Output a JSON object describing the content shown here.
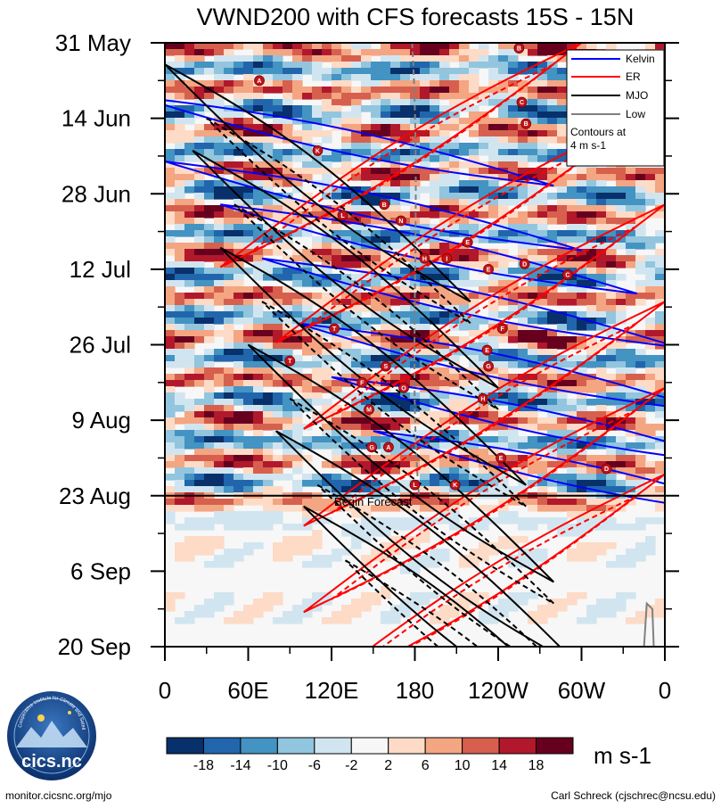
{
  "chart_data": {
    "type": "heatmap",
    "title": "VWND200 with CFS forecasts  15S - 15N",
    "xlabel": "",
    "ylabel": "",
    "x_ticks": [
      "0",
      "60E",
      "120E",
      "180",
      "120W",
      "60W",
      "0"
    ],
    "x_range": [
      0,
      360
    ],
    "y_ticks": [
      "31 May",
      "14 Jun",
      "28 Jun",
      "12 Jul",
      "26 Jul",
      "9 Aug",
      "23 Aug",
      "6 Sep",
      "20 Sep"
    ],
    "y_range_days": [
      0,
      112
    ],
    "forecast_start_day": 84,
    "forecast_label": "Begin Forecast",
    "colorbar": {
      "labels": [
        "-18",
        "-14",
        "-10",
        "-6",
        "-2",
        "2",
        "6",
        "10",
        "14",
        "18"
      ],
      "colors": [
        "#08306b",
        "#2166ac",
        "#4393c3",
        "#92c5de",
        "#d1e5f0",
        "#f7f7f7",
        "#fddbc7",
        "#f4a582",
        "#d6604d",
        "#b2182b",
        "#67001f"
      ],
      "units": "m s-1"
    },
    "legend": {
      "items": [
        {
          "name": "Kelvin",
          "color": "#0000ff"
        },
        {
          "name": "ER",
          "color": "#ff0000"
        },
        {
          "name": "MJO",
          "color": "#000000"
        },
        {
          "name": "Low",
          "color": "#808080"
        }
      ],
      "note_line1": "Contours at",
      "note_line2": "4 m s-1"
    },
    "storms": [
      {
        "id": "B",
        "lon": 255,
        "day": 1
      },
      {
        "id": "A",
        "lon": 68,
        "day": 7
      },
      {
        "id": "C",
        "lon": 257,
        "day": 11
      },
      {
        "id": "B",
        "lon": 260,
        "day": 15
      },
      {
        "id": "K",
        "lon": 110,
        "day": 20
      },
      {
        "id": "B",
        "lon": 158,
        "day": 30
      },
      {
        "id": "L",
        "lon": 128,
        "day": 32
      },
      {
        "id": "N",
        "lon": 170,
        "day": 33
      },
      {
        "id": "E",
        "lon": 218,
        "day": 37
      },
      {
        "id": "H",
        "lon": 187,
        "day": 40
      },
      {
        "id": "I",
        "lon": 203,
        "day": 40
      },
      {
        "id": "D",
        "lon": 259,
        "day": 41
      },
      {
        "id": "E",
        "lon": 233,
        "day": 42
      },
      {
        "id": "C",
        "lon": 290,
        "day": 43
      },
      {
        "id": "T",
        "lon": 122,
        "day": 53
      },
      {
        "id": "F",
        "lon": 243,
        "day": 53
      },
      {
        "id": "E",
        "lon": 232,
        "day": 57
      },
      {
        "id": "T",
        "lon": 90,
        "day": 59
      },
      {
        "id": "G",
        "lon": 233,
        "day": 60
      },
      {
        "id": "S",
        "lon": 159,
        "day": 60
      },
      {
        "id": "F",
        "lon": 142,
        "day": 63
      },
      {
        "id": "O",
        "lon": 172,
        "day": 64
      },
      {
        "id": "H",
        "lon": 229,
        "day": 66
      },
      {
        "id": "M",
        "lon": 147,
        "day": 68
      },
      {
        "id": "G",
        "lon": 149,
        "day": 75
      },
      {
        "id": "A",
        "lon": 161,
        "day": 75
      },
      {
        "id": "E",
        "lon": 242,
        "day": 77
      },
      {
        "id": "D",
        "lon": 318,
        "day": 79
      },
      {
        "id": "L",
        "lon": 180,
        "day": 82
      },
      {
        "id": "K",
        "lon": 209,
        "day": 82
      }
    ]
  },
  "logo": {
    "text": "cics.nc",
    "ring_text": "Cooperative Institute for Climate and Satellites"
  },
  "footer": {
    "left": "monitor.cicsnc.org/mjo",
    "right": "Carl Schreck (cjschrec@ncsu.edu)"
  }
}
